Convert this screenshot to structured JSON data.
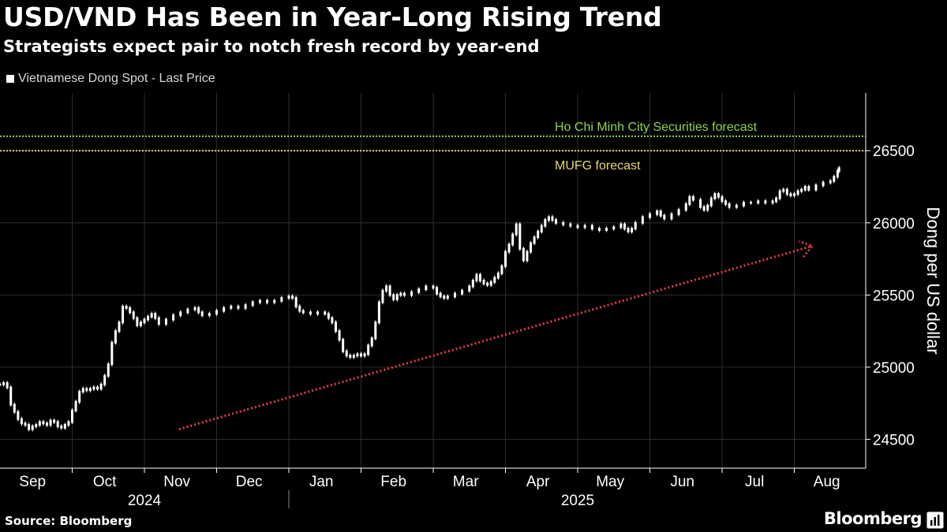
{
  "header": {
    "title": "USD/VND Has Been in Year-Long Rising Trend",
    "subtitle": "Strategists expect pair to notch fresh record by year-end"
  },
  "legend": {
    "label": "Vietnamese Dong Spot - Last Price"
  },
  "footer": {
    "source": "Source: Bloomberg",
    "brand": "Bloomberg"
  },
  "colors": {
    "background": "#000000",
    "price": "#ffffff",
    "grid": "#2e2e2e",
    "hcmc_line": "#8fd14f",
    "mufg_line": "#e8d66b",
    "trend_arrow": "#e03d4b"
  },
  "chart_data": {
    "type": "candlestick",
    "title": "USD/VND Has Been in Year-Long Rising Trend",
    "subtitle": "Strategists expect pair to notch fresh record by year-end",
    "ylabel": "Dong per US dollar",
    "xlabel": "",
    "ylim": [
      24300,
      26900
    ],
    "yticks": [
      24500,
      25000,
      25500,
      26000,
      26500
    ],
    "grid": true,
    "legend_position": "top-left",
    "series": [
      {
        "name": "Vietnamese Dong Spot - Last Price"
      }
    ],
    "months": [
      {
        "label": "Sep",
        "start": 0
      },
      {
        "label": "Oct",
        "start": 1
      },
      {
        "label": "Nov",
        "start": 2
      },
      {
        "label": "Dec",
        "start": 3
      },
      {
        "label": "Jan",
        "start": 4
      },
      {
        "label": "Feb",
        "start": 5
      },
      {
        "label": "Mar",
        "start": 6
      },
      {
        "label": "Apr",
        "start": 7
      },
      {
        "label": "May",
        "start": 8
      },
      {
        "label": "Jun",
        "start": 9
      },
      {
        "label": "Jul",
        "start": 10
      },
      {
        "label": "Aug",
        "start": 11
      }
    ],
    "years": [
      {
        "label": "2024",
        "center": 2.0
      },
      {
        "label": "2025",
        "center": 8.0
      }
    ],
    "year_divider": 4.0,
    "x_range": [
      0,
      11.95
    ],
    "price_path": [
      [
        0.0,
        24880
      ],
      [
        0.05,
        24890
      ],
      [
        0.1,
        24860
      ],
      [
        0.15,
        24740
      ],
      [
        0.2,
        24690
      ],
      [
        0.25,
        24640
      ],
      [
        0.3,
        24610
      ],
      [
        0.35,
        24600
      ],
      [
        0.4,
        24570
      ],
      [
        0.45,
        24590
      ],
      [
        0.5,
        24600
      ],
      [
        0.55,
        24620
      ],
      [
        0.6,
        24610
      ],
      [
        0.65,
        24600
      ],
      [
        0.7,
        24630
      ],
      [
        0.75,
        24620
      ],
      [
        0.8,
        24590
      ],
      [
        0.85,
        24580
      ],
      [
        0.9,
        24600
      ],
      [
        0.95,
        24620
      ],
      [
        1.0,
        24700
      ],
      [
        1.05,
        24760
      ],
      [
        1.1,
        24830
      ],
      [
        1.15,
        24850
      ],
      [
        1.2,
        24840
      ],
      [
        1.25,
        24850
      ],
      [
        1.3,
        24860
      ],
      [
        1.35,
        24850
      ],
      [
        1.4,
        24880
      ],
      [
        1.45,
        24940
      ],
      [
        1.5,
        25020
      ],
      [
        1.55,
        25170
      ],
      [
        1.6,
        25250
      ],
      [
        1.65,
        25310
      ],
      [
        1.7,
        25420
      ],
      [
        1.75,
        25410
      ],
      [
        1.8,
        25380
      ],
      [
        1.85,
        25340
      ],
      [
        1.9,
        25290
      ],
      [
        1.95,
        25310
      ],
      [
        2.0,
        25330
      ],
      [
        2.05,
        25350
      ],
      [
        2.1,
        25370
      ],
      [
        2.15,
        25340
      ],
      [
        2.2,
        25300
      ],
      [
        2.3,
        25330
      ],
      [
        2.4,
        25360
      ],
      [
        2.5,
        25380
      ],
      [
        2.6,
        25400
      ],
      [
        2.7,
        25410
      ],
      [
        2.75,
        25380
      ],
      [
        2.8,
        25360
      ],
      [
        2.9,
        25370
      ],
      [
        3.0,
        25390
      ],
      [
        3.1,
        25410
      ],
      [
        3.2,
        25420
      ],
      [
        3.3,
        25410
      ],
      [
        3.4,
        25430
      ],
      [
        3.5,
        25450
      ],
      [
        3.6,
        25460
      ],
      [
        3.7,
        25450
      ],
      [
        3.8,
        25460
      ],
      [
        3.9,
        25480
      ],
      [
        4.0,
        25490
      ],
      [
        4.05,
        25480
      ],
      [
        4.1,
        25420
      ],
      [
        4.15,
        25390
      ],
      [
        4.2,
        25380
      ],
      [
        4.3,
        25370
      ],
      [
        4.4,
        25380
      ],
      [
        4.5,
        25370
      ],
      [
        4.55,
        25340
      ],
      [
        4.6,
        25310
      ],
      [
        4.65,
        25250
      ],
      [
        4.7,
        25190
      ],
      [
        4.75,
        25110
      ],
      [
        4.8,
        25080
      ],
      [
        4.85,
        25070
      ],
      [
        4.9,
        25080
      ],
      [
        4.95,
        25090
      ],
      [
        5.0,
        25080
      ],
      [
        5.05,
        25090
      ],
      [
        5.1,
        25150
      ],
      [
        5.15,
        25200
      ],
      [
        5.2,
        25310
      ],
      [
        5.25,
        25450
      ],
      [
        5.3,
        25530
      ],
      [
        5.35,
        25560
      ],
      [
        5.4,
        25500
      ],
      [
        5.45,
        25470
      ],
      [
        5.5,
        25500
      ],
      [
        5.55,
        25510
      ],
      [
        5.6,
        25500
      ],
      [
        5.7,
        25520
      ],
      [
        5.8,
        25540
      ],
      [
        5.9,
        25560
      ],
      [
        6.0,
        25550
      ],
      [
        6.05,
        25510
      ],
      [
        6.1,
        25490
      ],
      [
        6.15,
        25480
      ],
      [
        6.2,
        25490
      ],
      [
        6.3,
        25510
      ],
      [
        6.4,
        25530
      ],
      [
        6.5,
        25560
      ],
      [
        6.55,
        25600
      ],
      [
        6.6,
        25640
      ],
      [
        6.65,
        25600
      ],
      [
        6.7,
        25580
      ],
      [
        6.75,
        25570
      ],
      [
        6.8,
        25590
      ],
      [
        6.85,
        25620
      ],
      [
        6.9,
        25650
      ],
      [
        6.95,
        25700
      ],
      [
        7.0,
        25800
      ],
      [
        7.05,
        25850
      ],
      [
        7.1,
        25920
      ],
      [
        7.15,
        25990
      ],
      [
        7.2,
        25820
      ],
      [
        7.25,
        25740
      ],
      [
        7.3,
        25800
      ],
      [
        7.35,
        25860
      ],
      [
        7.4,
        25900
      ],
      [
        7.45,
        25940
      ],
      [
        7.5,
        25980
      ],
      [
        7.55,
        26020
      ],
      [
        7.6,
        26040
      ],
      [
        7.65,
        26020
      ],
      [
        7.7,
        26000
      ],
      [
        7.8,
        25990
      ],
      [
        7.9,
        25980
      ],
      [
        8.0,
        25970
      ],
      [
        8.1,
        25980
      ],
      [
        8.2,
        25960
      ],
      [
        8.3,
        25950
      ],
      [
        8.4,
        25960
      ],
      [
        8.5,
        25970
      ],
      [
        8.6,
        25990
      ],
      [
        8.65,
        25960
      ],
      [
        8.7,
        25940
      ],
      [
        8.75,
        25960
      ],
      [
        8.8,
        26000
      ],
      [
        8.9,
        26040
      ],
      [
        9.0,
        26060
      ],
      [
        9.1,
        26080
      ],
      [
        9.15,
        26050
      ],
      [
        9.2,
        26030
      ],
      [
        9.3,
        26060
      ],
      [
        9.4,
        26090
      ],
      [
        9.5,
        26130
      ],
      [
        9.55,
        26180
      ],
      [
        9.6,
        26160
      ],
      [
        9.7,
        26110
      ],
      [
        9.75,
        26090
      ],
      [
        9.8,
        26120
      ],
      [
        9.85,
        26170
      ],
      [
        9.9,
        26200
      ],
      [
        9.95,
        26180
      ],
      [
        10.0,
        26150
      ],
      [
        10.05,
        26130
      ],
      [
        10.1,
        26110
      ],
      [
        10.2,
        26120
      ],
      [
        10.3,
        26140
      ],
      [
        10.4,
        26140
      ],
      [
        10.5,
        26150
      ],
      [
        10.6,
        26140
      ],
      [
        10.7,
        26150
      ],
      [
        10.75,
        26170
      ],
      [
        10.8,
        26220
      ],
      [
        10.85,
        26230
      ],
      [
        10.9,
        26200
      ],
      [
        10.95,
        26190
      ],
      [
        11.0,
        26200
      ],
      [
        11.05,
        26220
      ],
      [
        11.1,
        26230
      ],
      [
        11.15,
        26250
      ],
      [
        11.2,
        26230
      ],
      [
        11.3,
        26260
      ],
      [
        11.4,
        26280
      ],
      [
        11.5,
        26290
      ],
      [
        11.55,
        26320
      ],
      [
        11.6,
        26360
      ],
      [
        11.62,
        26380
      ]
    ],
    "forecast_lines": [
      {
        "label": "Ho Chi Minh City Securities forecast",
        "value": 26600,
        "color": "#8fd14f"
      },
      {
        "label": "MUFG forecast",
        "value": 26500,
        "color": "#e8d66b"
      }
    ],
    "trend_arrow": {
      "start": {
        "x": 2.48,
        "y": 24570
      },
      "end": {
        "x": 11.25,
        "y": 25840
      },
      "color": "#e03d4b"
    }
  }
}
